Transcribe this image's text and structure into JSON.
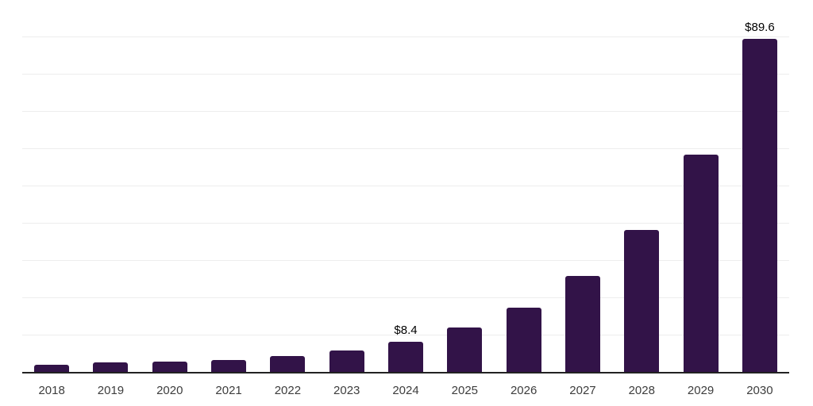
{
  "chart_data": {
    "type": "bar",
    "title": "",
    "xlabel": "",
    "ylabel": "",
    "categories": [
      "2018",
      "2019",
      "2020",
      "2021",
      "2022",
      "2023",
      "2024",
      "2025",
      "2026",
      "2027",
      "2028",
      "2029",
      "2030"
    ],
    "values": [
      2.2,
      2.7,
      3.0,
      3.5,
      4.5,
      6.0,
      8.4,
      12.2,
      17.4,
      26.0,
      38.3,
      58.6,
      89.6
    ],
    "data_labels": [
      "",
      "",
      "",
      "",
      "",
      "",
      "$8.4",
      "",
      "",
      "",
      "",
      "",
      "$89.6"
    ],
    "ylim": [
      0,
      100
    ],
    "gridline_step": 10,
    "grid": true,
    "legend": "none",
    "y_axis_labels_visible": false
  },
  "theme": {
    "bar_color": "#321348",
    "gridline_color": "#ededed",
    "axis_line_color": "#222222",
    "tick_label_color": "#3d3d3d",
    "data_label_color": "#000000",
    "background": "#ffffff"
  }
}
